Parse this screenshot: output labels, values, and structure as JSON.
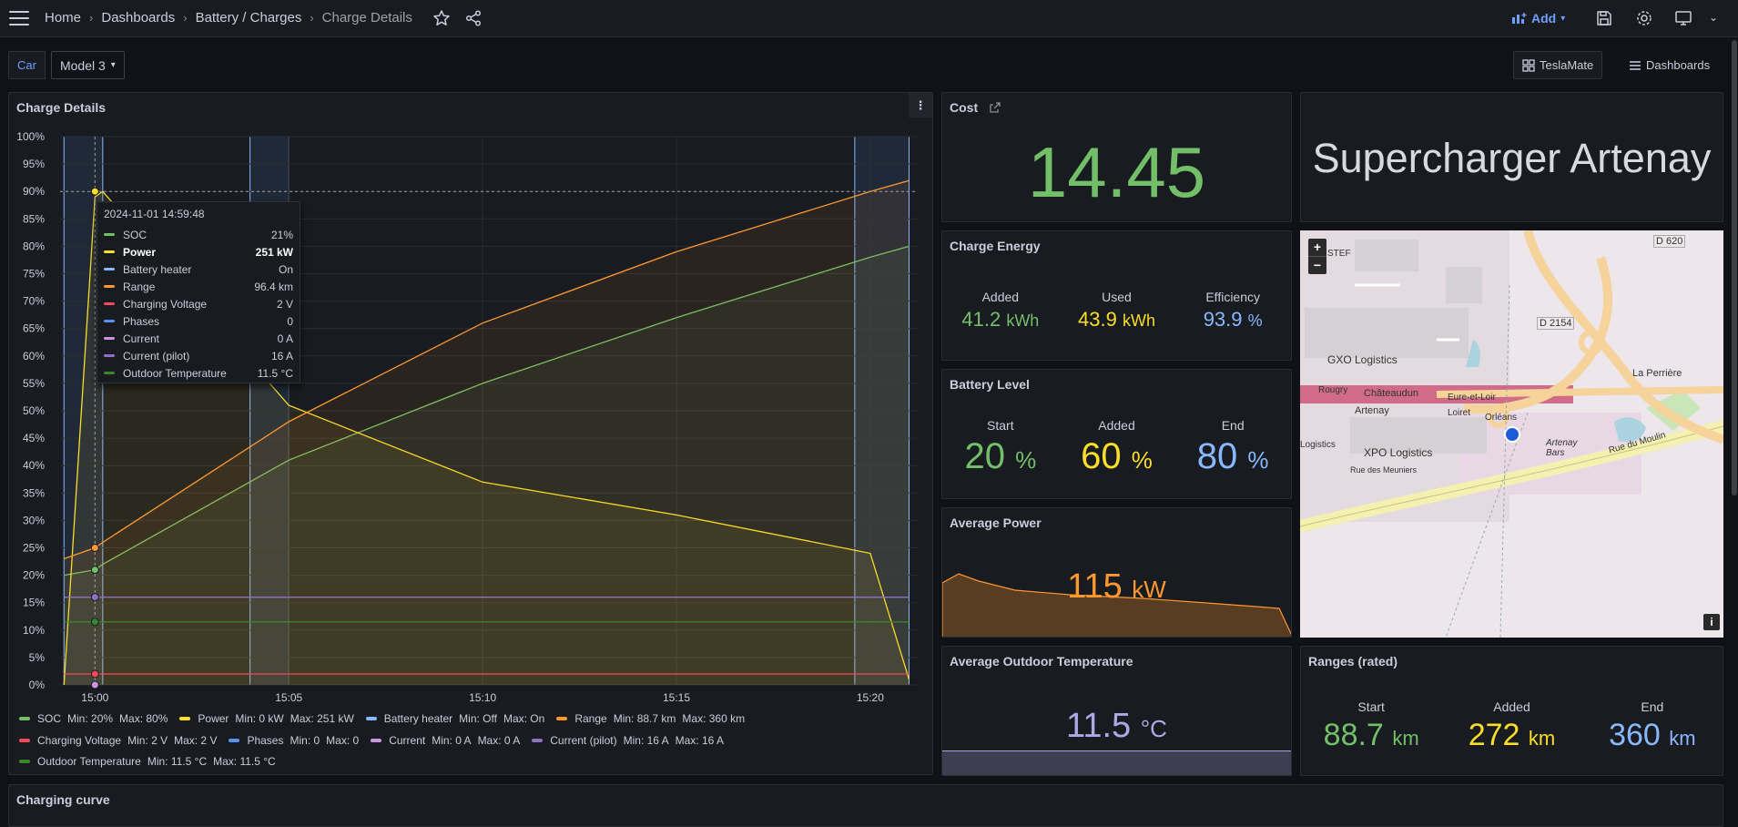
{
  "breadcrumbs": [
    "Home",
    "Dashboards",
    "Battery / Charges",
    "Charge Details"
  ],
  "topbar": {
    "add_label": "Add"
  },
  "variables": {
    "car_label": "Car",
    "car_value": "Model 3"
  },
  "links": {
    "teslamate": "TeslaMate",
    "dashboards": "Dashboards"
  },
  "charge_details": {
    "title": "Charge Details",
    "tooltip": {
      "time": "2024-11-01 14:59:48",
      "rows": [
        {
          "name": "SOC",
          "value": "21%",
          "color": "#73bf69"
        },
        {
          "name": "Power",
          "value": "251 kW",
          "color": "#fade2a"
        },
        {
          "name": "Battery heater",
          "value": "On",
          "color": "#8ab8ff"
        },
        {
          "name": "Range",
          "value": "96.4 km",
          "color": "#ff9830"
        },
        {
          "name": "Charging Voltage",
          "value": "2 V",
          "color": "#f2495c"
        },
        {
          "name": "Phases",
          "value": "0",
          "color": "#5794f2"
        },
        {
          "name": "Current",
          "value": "0 A",
          "color": "#ca95e5"
        },
        {
          "name": "Current (pilot)",
          "value": "16 A",
          "color": "#8f70c6"
        },
        {
          "name": "Outdoor Temperature",
          "value": "11.5 °C",
          "color": "#37872d"
        }
      ]
    },
    "legend": [
      {
        "name": "SOC",
        "min": "Min: 20%",
        "max": "Max: 80%",
        "color": "#73bf69"
      },
      {
        "name": "Power",
        "min": "Min: 0 kW",
        "max": "Max: 251 kW",
        "color": "#fade2a"
      },
      {
        "name": "Battery heater",
        "min": "Min: Off",
        "max": "Max: On",
        "color": "#8ab8ff"
      },
      {
        "name": "Range",
        "min": "Min: 88.7 km",
        "max": "Max: 360 km",
        "color": "#ff9830"
      },
      {
        "name": "Charging Voltage",
        "min": "Min: 2 V",
        "max": "Max: 2 V",
        "color": "#f2495c"
      },
      {
        "name": "Phases",
        "min": "Min: 0",
        "max": "Max: 0",
        "color": "#5794f2"
      },
      {
        "name": "Current",
        "min": "Min: 0 A",
        "max": "Max: 0 A",
        "color": "#ca95e5"
      },
      {
        "name": "Current (pilot)",
        "min": "Min: 16 A",
        "max": "Max: 16 A",
        "color": "#8f70c6"
      },
      {
        "name": "Outdoor Temperature",
        "min": "Min: 11.5 °C",
        "max": "Max: 11.5 °C",
        "color": "#37872d"
      }
    ]
  },
  "chart_data": {
    "type": "line",
    "x_ticks": [
      "15:00",
      "15:05",
      "15:10",
      "15:15",
      "15:20"
    ],
    "y_ticks": [
      "0%",
      "5%",
      "10%",
      "15%",
      "20%",
      "25%",
      "30%",
      "35%",
      "40%",
      "45%",
      "50%",
      "55%",
      "60%",
      "65%",
      "70%",
      "75%",
      "80%",
      "85%",
      "90%",
      "95%",
      "100%"
    ],
    "ylim": [
      0,
      100
    ],
    "x_minutes": [
      -0.8,
      0,
      0.2,
      5,
      10,
      15,
      20,
      21
    ],
    "series": [
      {
        "name": "SOC",
        "color": "#73bf69",
        "values": [
          20,
          21,
          22,
          41,
          55,
          67,
          78,
          80
        ]
      },
      {
        "name": "Power",
        "color": "#fade2a",
        "values": [
          0,
          89,
          90,
          51,
          37,
          31,
          24,
          1
        ]
      },
      {
        "name": "Range",
        "color": "#ff9830",
        "values": [
          23,
          25,
          26,
          48,
          66,
          79,
          90,
          92
        ]
      },
      {
        "name": "Current (pilot)",
        "color": "#8f70c6",
        "values": [
          16,
          16,
          16,
          16,
          16,
          16,
          16,
          16
        ]
      },
      {
        "name": "Outdoor Temperature",
        "color": "#37872d",
        "values": [
          11.5,
          11.5,
          11.5,
          11.5,
          11.5,
          11.5,
          11.5,
          11.5
        ]
      },
      {
        "name": "Charging Voltage",
        "color": "#f2495c",
        "values": [
          2,
          2,
          2,
          2,
          2,
          2,
          2,
          2
        ]
      }
    ]
  },
  "cost": {
    "title": "Cost",
    "value": "14.45"
  },
  "location": {
    "name": "Supercharger Artenay"
  },
  "charge_energy": {
    "title": "Charge Energy",
    "added_label": "Added",
    "added_value": "41.2",
    "added_unit": "kWh",
    "used_label": "Used",
    "used_value": "43.9",
    "used_unit": "kWh",
    "eff_label": "Efficiency",
    "eff_value": "93.9",
    "eff_unit": "%"
  },
  "battery_level": {
    "title": "Battery Level",
    "start_label": "Start",
    "start_value": "20",
    "start_unit": "%",
    "added_label": "Added",
    "added_value": "60",
    "added_unit": "%",
    "end_label": "End",
    "end_value": "80",
    "end_unit": "%"
  },
  "average_power": {
    "title": "Average Power",
    "value": "115",
    "unit": "kW"
  },
  "average_temp": {
    "title": "Average Outdoor Temperature",
    "value": "11.5",
    "unit": "°C"
  },
  "ranges": {
    "title": "Ranges (rated)",
    "start_label": "Start",
    "start_value": "88.7",
    "start_unit": "km",
    "added_label": "Added",
    "added_value": "272",
    "added_unit": "km",
    "end_label": "End",
    "end_value": "360",
    "end_unit": "km"
  },
  "charging_curve": {
    "title": "Charging curve"
  },
  "map": {
    "labels": [
      "D 620",
      "STEF",
      "D 2154",
      "GXO Logistics",
      "Rougry",
      "Châteaudun",
      "Eure-et-Loir",
      "Loiret",
      "Artenay",
      "Orléans",
      "La Perrière",
      "Logistics",
      "XPO Logistics",
      "Artenay Bars",
      "Rue des Meuniers",
      "Rue du Moulin"
    ],
    "zoom_in": "+",
    "zoom_out": "−",
    "info": "i"
  }
}
